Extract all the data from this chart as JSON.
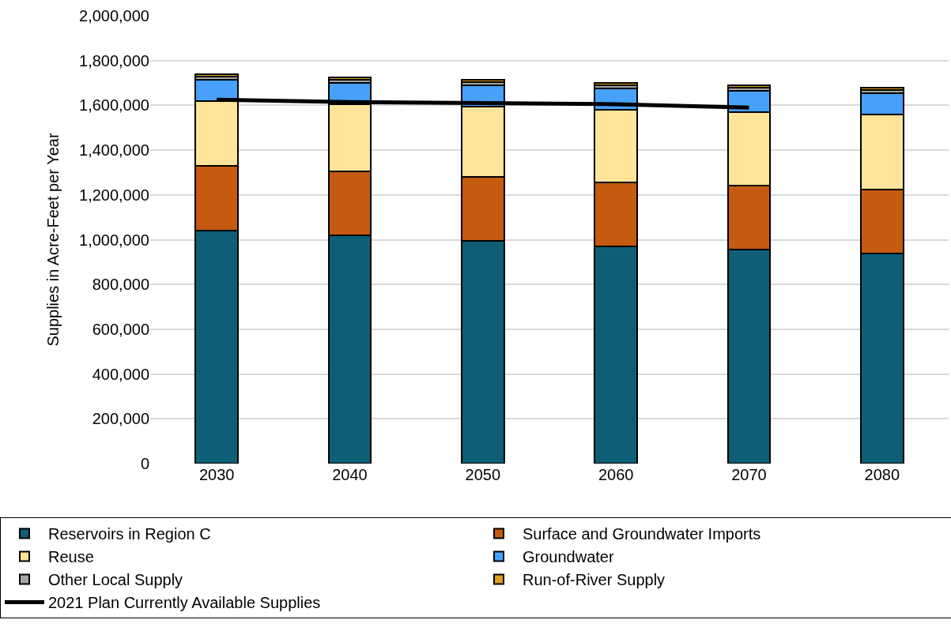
{
  "chart_data": {
    "type": "bar",
    "stacked": true,
    "ylabel": "Supplies in Acre-Feet per Year",
    "categories": [
      "2030",
      "2040",
      "2050",
      "2060",
      "2070",
      "2080"
    ],
    "series": [
      {
        "name": "Reservoirs in Region C",
        "color": "#0e5f75",
        "values": [
          1040000,
          1020000,
          995000,
          970000,
          955000,
          940000
        ]
      },
      {
        "name": "Surface and Groundwater Imports",
        "color": "#c55a11",
        "values": [
          290000,
          285000,
          285000,
          285000,
          285000,
          285000
        ]
      },
      {
        "name": "Reuse",
        "color": "#ffe499",
        "values": [
          290000,
          300000,
          315000,
          325000,
          330000,
          335000
        ]
      },
      {
        "name": "Groundwater",
        "color": "#47a1fa",
        "values": [
          95000,
          95000,
          95000,
          95000,
          95000,
          95000
        ]
      },
      {
        "name": "Other Local Supply",
        "color": "#a5a5a5",
        "values": [
          15000,
          15000,
          15000,
          15000,
          15000,
          15000
        ]
      },
      {
        "name": "Run-of-River Supply",
        "color": "#e0a020",
        "values": [
          10000,
          10000,
          10000,
          10000,
          10000,
          10000
        ]
      },
      {
        "name": "2021 Plan Currently Available Supplies",
        "type": "line",
        "color": "#000000",
        "values": [
          1625000,
          1615000,
          1610000,
          1605000,
          1590000,
          null
        ]
      }
    ],
    "ylim": [
      0,
      2000000
    ],
    "yticks": [
      0,
      {
        "value": 200000,
        "label": "200,000"
      },
      {
        "value": 400000,
        "label": "400,000"
      },
      {
        "value": 600000,
        "label": "600,000"
      },
      {
        "value": 800000,
        "label": "800,000"
      },
      {
        "value": 1000000,
        "label": "1,000,000"
      },
      {
        "value": 1200000,
        "label": "1,200,000"
      },
      {
        "value": 1400000,
        "label": "1,400,000"
      },
      {
        "value": 1600000,
        "label": "1,600,000"
      },
      {
        "value": 1800000,
        "label": "1,800,000"
      },
      {
        "value": 2000000,
        "label": "2,000,000"
      }
    ],
    "grid": "y",
    "legend": "bottom",
    "marker": "none",
    "line_style": "solid"
  }
}
